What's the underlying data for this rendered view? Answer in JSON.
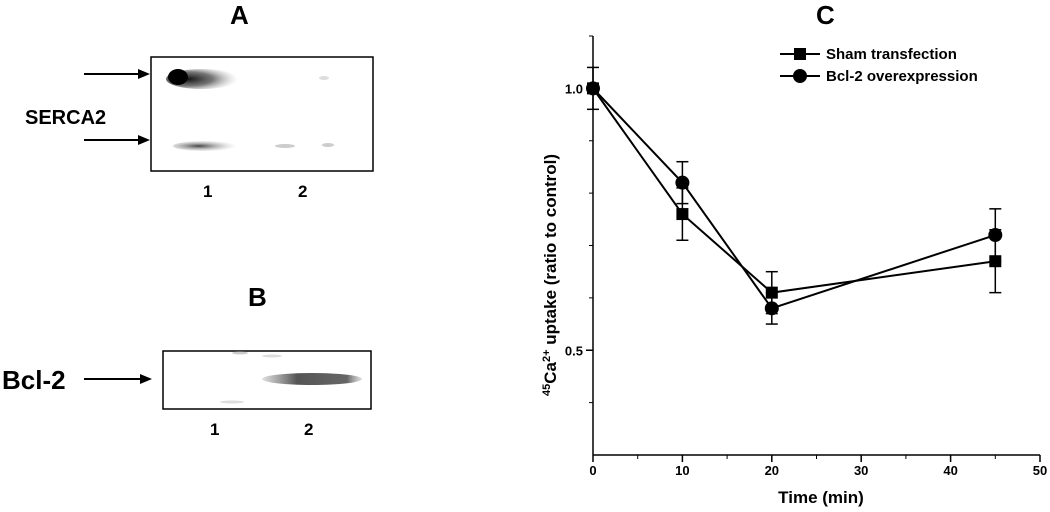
{
  "panel_a": {
    "letter": "A",
    "protein_label": "SERCA2",
    "lanes": [
      "1",
      "2"
    ]
  },
  "panel_b": {
    "letter": "B",
    "protein_label": "Bcl-2",
    "lanes": [
      "1",
      "2"
    ]
  },
  "panel_c": {
    "letter": "C"
  },
  "chart_data": {
    "type": "line",
    "title": "",
    "xlabel": "Time (min)",
    "ylabel_pre": "45",
    "ylabel_main": "Ca",
    "ylabel_sup": "2+",
    "ylabel_rest": " uptake (ratio to control)",
    "xlim": [
      0,
      50
    ],
    "ylim": [
      0.3,
      1.1
    ],
    "xticks": [
      "0",
      "10",
      "20",
      "30",
      "40",
      "50"
    ],
    "yticks": [
      "0.5",
      "1.0"
    ],
    "legend_placement": "top-right",
    "grid": false,
    "series": [
      {
        "name": "Sham transfection",
        "marker": "square",
        "x": [
          0,
          10,
          20,
          45
        ],
        "y": [
          1.0,
          0.76,
          0.61,
          0.67
        ],
        "err": [
          0.04,
          0.05,
          0.04,
          0.06
        ]
      },
      {
        "name": "Bcl-2 overexpression",
        "marker": "circle",
        "x": [
          0,
          10,
          20,
          45
        ],
        "y": [
          1.0,
          0.82,
          0.58,
          0.72
        ],
        "err": [
          0.0,
          0.04,
          0.03,
          0.05
        ]
      }
    ]
  }
}
